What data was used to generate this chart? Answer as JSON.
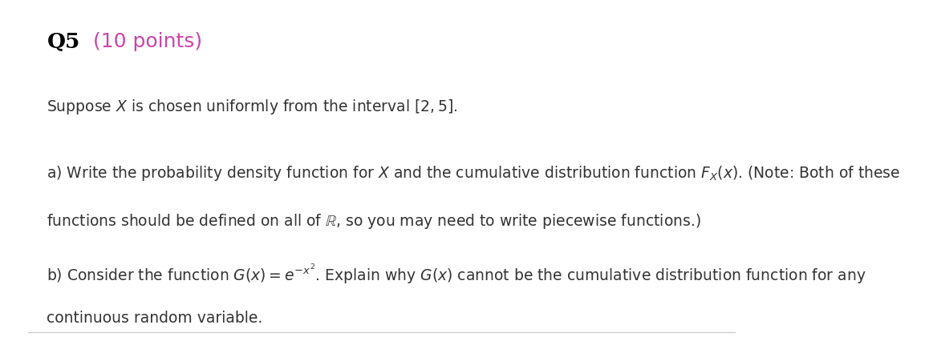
{
  "title_q": "Q5",
  "title_points": " (10 points)",
  "title_color": "#cc44aa",
  "title_q_color": "#000000",
  "background_color": "#ffffff",
  "line_color": "#cccccc",
  "text_color": "#333333",
  "font_size_title": 19,
  "font_size_body": 13.5,
  "line1": "Suppose $X$ is chosen uniformly from the interval $[2, 5]$.",
  "line2a_start": "a) Write the probability density function for $X$ and the cumulative distribution function $F_X(x)$. (Note: Both of these",
  "line2b": "functions should be defined on all of $\\mathbb{R}$, so you may need to write piecewise functions.)",
  "line3a_start": "b) Consider the function $G(x) = e^{-x^2}$. Explain why $G(x)$ cannot be the cumulative distribution function for any",
  "line3b": "continuous random variable."
}
